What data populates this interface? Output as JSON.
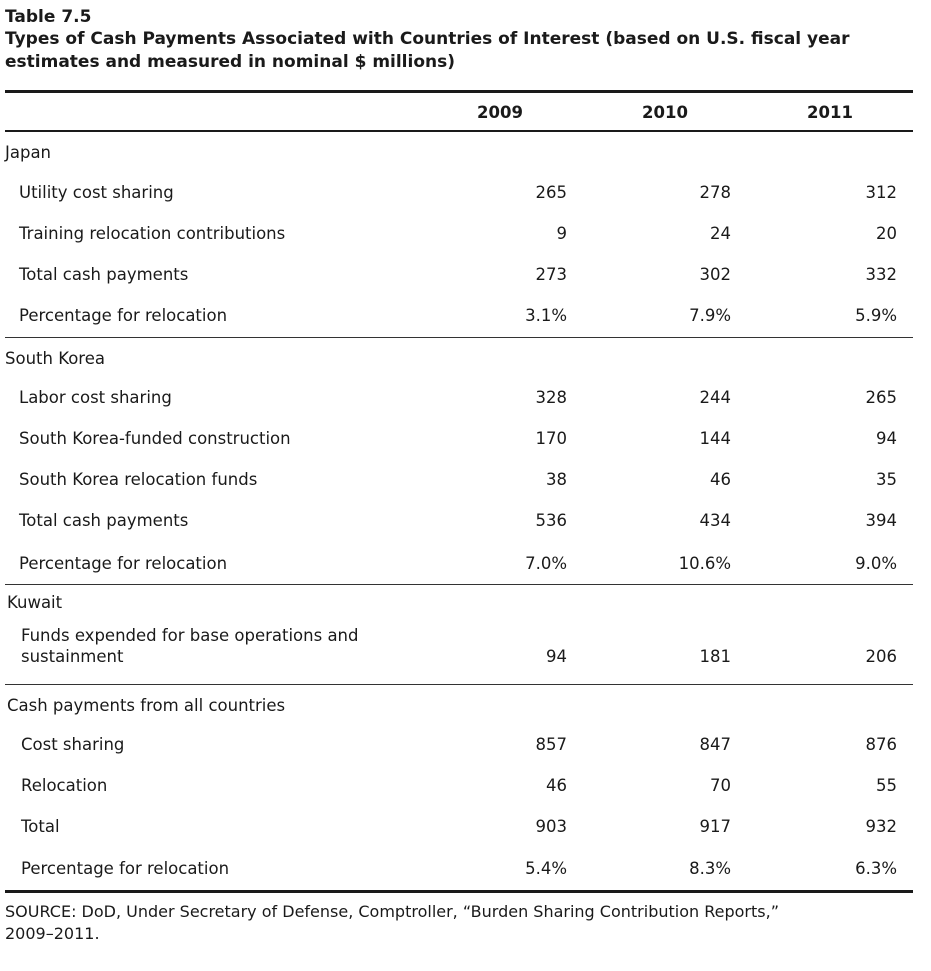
{
  "table": {
    "number": "Table 7.5",
    "title": "Types of Cash Payments Associated with Countries of Interest (based on U.S. fiscal year estimates and measured in nominal $ millions)",
    "years": [
      "2009",
      "2010",
      "2011"
    ],
    "sections": [
      {
        "name": "Japan",
        "rows": [
          {
            "label": "Utility cost sharing",
            "values": [
              "265",
              "278",
              "312"
            ]
          },
          {
            "label": "Training relocation contributions",
            "values": [
              "9",
              "24",
              "20"
            ]
          },
          {
            "label": "Total cash payments",
            "values": [
              "273",
              "302",
              "332"
            ]
          },
          {
            "label": "Percentage for relocation",
            "values": [
              "3.1%",
              "7.9%",
              "5.9%"
            ]
          }
        ]
      },
      {
        "name": "South Korea",
        "rows": [
          {
            "label": "Labor cost sharing",
            "values": [
              "328",
              "244",
              "265"
            ]
          },
          {
            "label": "South Korea-funded construction",
            "values": [
              "170",
              "144",
              "94"
            ]
          },
          {
            "label": "South Korea relocation funds",
            "values": [
              "38",
              "46",
              "35"
            ]
          },
          {
            "label": "Total cash payments",
            "values": [
              "536",
              "434",
              "394"
            ]
          },
          {
            "label": "Percentage for relocation",
            "values": [
              "7.0%",
              "10.6%",
              "9.0%"
            ]
          }
        ]
      },
      {
        "name": "Kuwait",
        "rows": [
          {
            "label_line1": "Funds expended for base operations and",
            "label_line2": "sustainment",
            "values": [
              "94",
              "181",
              "206"
            ]
          }
        ]
      },
      {
        "name": "Cash payments from all countries",
        "rows": [
          {
            "label": "Cost sharing",
            "values": [
              "857",
              "847",
              "876"
            ]
          },
          {
            "label": "Relocation",
            "values": [
              "46",
              "70",
              "55"
            ]
          },
          {
            "label": "Total",
            "values": [
              "903",
              "917",
              "932"
            ]
          },
          {
            "label": "Percentage for relocation",
            "values": [
              "5.4%",
              "8.3%",
              "6.3%"
            ]
          }
        ]
      }
    ],
    "source_line1": "SOURCE: DoD, Under Secretary of Defense, Comptroller, “Burden Sharing Contribution Reports,”",
    "source_line2": "2009–2011."
  }
}
